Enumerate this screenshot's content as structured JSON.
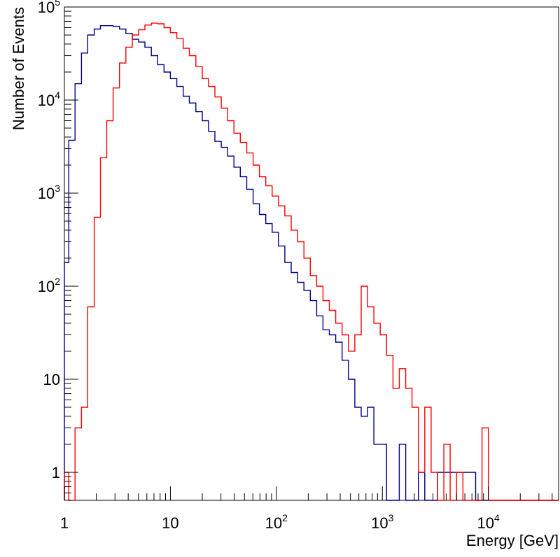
{
  "chart_data": {
    "type": "line",
    "title": "",
    "xlabel": "Energy [GeV]",
    "ylabel": "Number of Events",
    "x_scale": "log",
    "y_scale": "log",
    "xlim": [
      1,
      46000
    ],
    "ylim": [
      0.5,
      100000
    ],
    "grid": false,
    "legend": "none",
    "x_ticks": [
      {
        "value": 1,
        "base": "1",
        "exp": ""
      },
      {
        "value": 10,
        "base": "10",
        "exp": ""
      },
      {
        "value": 100,
        "base": "10",
        "exp": "2"
      },
      {
        "value": 1000,
        "base": "10",
        "exp": "3"
      },
      {
        "value": 10000,
        "base": "10",
        "exp": "4"
      }
    ],
    "y_ticks": [
      {
        "value": 1,
        "base": "1",
        "exp": ""
      },
      {
        "value": 10,
        "base": "10",
        "exp": ""
      },
      {
        "value": 100,
        "base": "10",
        "exp": "2"
      },
      {
        "value": 1000,
        "base": "10",
        "exp": "3"
      },
      {
        "value": 10000,
        "base": "10",
        "exp": "4"
      },
      {
        "value": 100000,
        "base": "10",
        "exp": "5"
      }
    ],
    "bin_edges": [
      1,
      1.1,
      1.26,
      1.45,
      1.66,
      1.91,
      2.19,
      2.51,
      2.88,
      3.31,
      3.8,
      4.37,
      5.01,
      5.75,
      6.61,
      7.59,
      8.71,
      10,
      11.5,
      13.2,
      15.1,
      17.4,
      20,
      22.9,
      26.3,
      30.2,
      34.7,
      39.8,
      45.7,
      52.5,
      60.3,
      69.2,
      79.4,
      91.2,
      104.7,
      120.2,
      138,
      158.5,
      182,
      208.9,
      239.9,
      275.4,
      316.2,
      363.1,
      416.9,
      478.6,
      549.5,
      631,
      724.4,
      831.8,
      955,
      1096,
      1259,
      1445,
      1660,
      1905,
      2188,
      2512,
      2884,
      3311,
      3802,
      4365,
      5012,
      5754,
      6607,
      7586,
      8710,
      10000,
      11480,
      13180,
      15140,
      17380,
      19950,
      22910,
      26300,
      30200,
      34670,
      39810,
      45710
    ],
    "series": [
      {
        "color": "#00008b",
        "values": [
          180,
          3700,
          15000,
          32000,
          50000,
          58000,
          63000,
          63000,
          62000,
          58000,
          52000,
          45000,
          42000,
          37000,
          30000,
          24000,
          20000,
          17000,
          14000,
          11000,
          9300,
          7500,
          6000,
          4600,
          3600,
          3100,
          2500,
          1900,
          1500,
          1100,
          770,
          590,
          470,
          380,
          270,
          180,
          140,
          110,
          90,
          70,
          48,
          34,
          30,
          25,
          16,
          10,
          5,
          4,
          5,
          2,
          2,
          0,
          0,
          2,
          0,
          0,
          1,
          0,
          0,
          1,
          1,
          1,
          1,
          1,
          1,
          0,
          0,
          0,
          0,
          0,
          0,
          0,
          0,
          0,
          0,
          0,
          0,
          0
        ]
      },
      {
        "color": "#ff0000",
        "values": [
          1,
          0,
          3,
          5,
          60,
          550,
          2400,
          6000,
          13500,
          25000,
          37000,
          50000,
          57000,
          64000,
          67000,
          66000,
          60000,
          53000,
          46000,
          36000,
          30000,
          23000,
          17000,
          14000,
          10800,
          8200,
          6000,
          4400,
          3500,
          2700,
          2000,
          1500,
          1200,
          930,
          730,
          570,
          400,
          300,
          200,
          130,
          100,
          70,
          55,
          40,
          30,
          20,
          30,
          100,
          60,
          40,
          30,
          18,
          8,
          13,
          8,
          5,
          1,
          5,
          1,
          0,
          2,
          0,
          1,
          0,
          0,
          0,
          3,
          0,
          0,
          0,
          0,
          0,
          0,
          0,
          0,
          0,
          0,
          0
        ]
      }
    ]
  }
}
